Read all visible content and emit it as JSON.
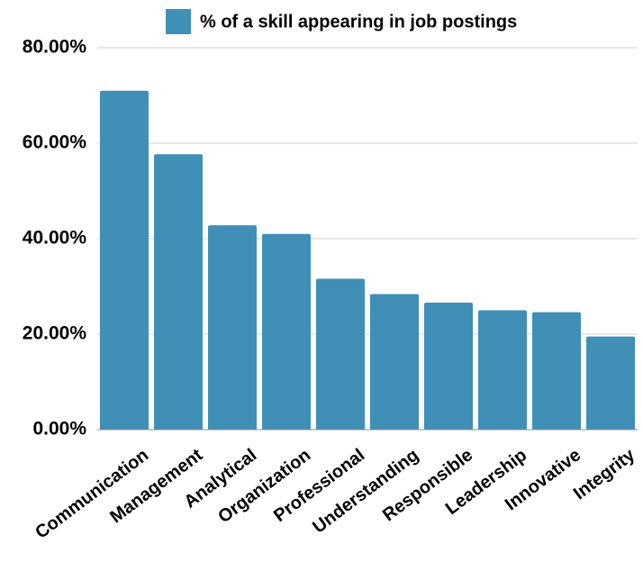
{
  "chart_data": {
    "type": "bar",
    "categories": [
      "Communication",
      "Management",
      "Analytical",
      "Organization",
      "Professional",
      "Understanding",
      "Responsible",
      "Leadership",
      "Innovative",
      "Integrity"
    ],
    "series": [
      {
        "name": "% of a skill appearing in job postings",
        "values": [
          71.0,
          57.7,
          42.8,
          41.0,
          31.6,
          28.4,
          26.6,
          25.0,
          24.6,
          19.5
        ],
        "color": "#3f8fb7"
      }
    ],
    "yticks": [
      "0.00%",
      "20.00%",
      "40.00%",
      "60.00%",
      "80.00%"
    ],
    "ylim": [
      0,
      80
    ],
    "grid": true,
    "legend_position": "top"
  }
}
